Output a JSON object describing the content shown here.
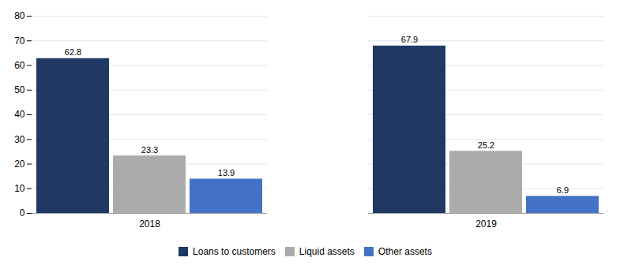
{
  "chart_data": {
    "type": "bar",
    "categories": [
      "2018",
      "2019"
    ],
    "series": [
      {
        "name": "Loans to customers",
        "color": "#1F3864",
        "values": [
          62.8,
          67.9
        ]
      },
      {
        "name": "Liquid assets",
        "color": "#ABABAB",
        "values": [
          23.3,
          25.2
        ]
      },
      {
        "name": "Other assets",
        "color": "#4472C4",
        "values": [
          13.9,
          6.9
        ]
      }
    ],
    "ylim": [
      0,
      80
    ],
    "yticks": [
      0,
      10,
      20,
      30,
      40,
      50,
      60,
      70,
      80
    ],
    "grid": true,
    "data_labels": true,
    "legend": "bottom"
  }
}
